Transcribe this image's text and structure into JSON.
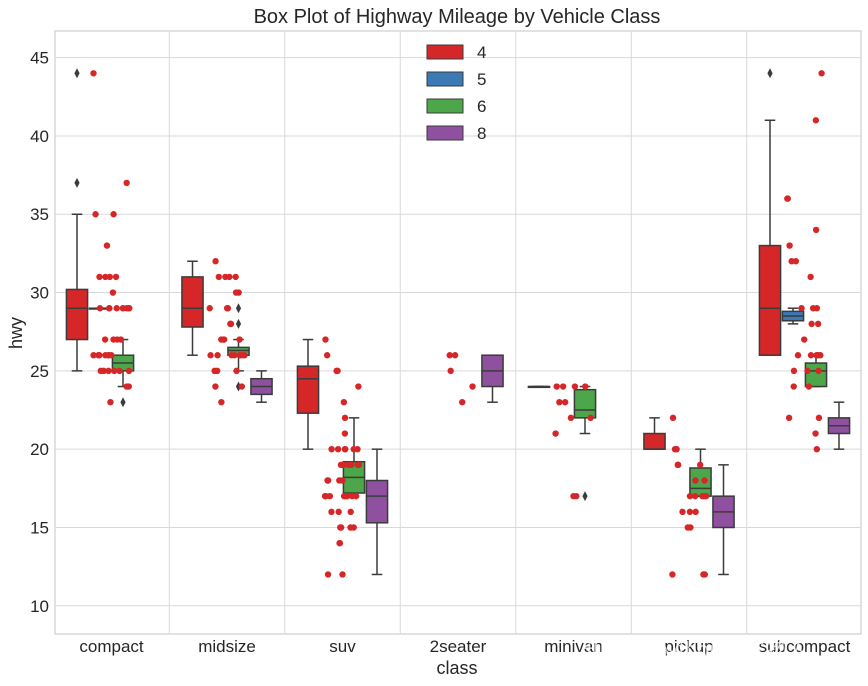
{
  "chart_data": {
    "type": "boxplot",
    "title": "Box Plot of Highway Mileage by Vehicle Class",
    "xlabel": "class",
    "ylabel": "hwy",
    "ylim": [
      8.2,
      46.7
    ],
    "yticks": [
      10,
      15,
      20,
      25,
      30,
      35,
      40,
      45
    ],
    "grid": true,
    "legend_position": "top-center",
    "categories": [
      "compact",
      "midsize",
      "suv",
      "2seater",
      "minivan",
      "pickup",
      "subcompact"
    ],
    "series": [
      {
        "name": "4",
        "color": "#d62728",
        "boxes": [
          {
            "category": "compact",
            "whislo": 25,
            "q1": 27,
            "med": 29,
            "q3": 30.2,
            "whishi": 35,
            "fliers": [
              37,
              44
            ]
          },
          {
            "category": "midsize",
            "whislo": 26,
            "q1": 27.8,
            "med": 29,
            "q3": 31,
            "whishi": 32,
            "fliers": []
          },
          {
            "category": "suv",
            "whislo": 20,
            "q1": 22.3,
            "med": 24.5,
            "q3": 25.3,
            "whishi": 27,
            "fliers": []
          },
          {
            "category": "minivan",
            "whislo": 24,
            "q1": 24,
            "med": 24,
            "q3": 24,
            "whishi": 24,
            "fliers": []
          },
          {
            "category": "pickup",
            "whislo": 20,
            "q1": 20,
            "med": 20,
            "q3": 21,
            "whishi": 22,
            "fliers": []
          },
          {
            "category": "subcompact",
            "whislo": 26,
            "q1": 26,
            "med": 29,
            "q3": 33,
            "whishi": 41,
            "fliers": [
              44
            ]
          }
        ]
      },
      {
        "name": "5",
        "color": "#3a7ab5",
        "boxes": [
          {
            "category": "compact",
            "whislo": 29,
            "q1": 29,
            "med": 29,
            "q3": 29,
            "whishi": 29,
            "fliers": []
          },
          {
            "category": "subcompact",
            "whislo": 28,
            "q1": 28.2,
            "med": 28.5,
            "q3": 28.8,
            "whishi": 29,
            "fliers": []
          }
        ]
      },
      {
        "name": "6",
        "color": "#4ea64a",
        "boxes": [
          {
            "category": "compact",
            "whislo": 24,
            "q1": 25,
            "med": 25.5,
            "q3": 26,
            "whishi": 27,
            "fliers": [
              23
            ]
          },
          {
            "category": "midsize",
            "whislo": 25,
            "q1": 26,
            "med": 26.3,
            "q3": 26.5,
            "whishi": 27,
            "fliers": [
              24,
              28,
              29
            ]
          },
          {
            "category": "suv",
            "whislo": 17,
            "q1": 17.2,
            "med": 18.2,
            "q3": 19.2,
            "whishi": 22,
            "fliers": []
          },
          {
            "category": "minivan",
            "whislo": 21,
            "q1": 22,
            "med": 22.5,
            "q3": 23.8,
            "whishi": 24,
            "fliers": [
              17
            ]
          },
          {
            "category": "pickup",
            "whislo": 17,
            "q1": 17,
            "med": 17.5,
            "q3": 18.8,
            "whishi": 20,
            "fliers": []
          },
          {
            "category": "subcompact",
            "whislo": 24,
            "q1": 24,
            "med": 25,
            "q3": 25.5,
            "whishi": 26,
            "fliers": []
          }
        ]
      },
      {
        "name": "8",
        "color": "#9050a0",
        "boxes": [
          {
            "category": "midsize",
            "whislo": 23,
            "q1": 23.5,
            "med": 24,
            "q3": 24.5,
            "whishi": 25,
            "fliers": []
          },
          {
            "category": "suv",
            "whislo": 12,
            "q1": 15.3,
            "med": 17,
            "q3": 18,
            "whishi": 20,
            "fliers": []
          },
          {
            "category": "2seater",
            "whislo": 23,
            "q1": 24,
            "med": 25,
            "q3": 26,
            "whishi": 26,
            "fliers": []
          },
          {
            "category": "pickup",
            "whislo": 12,
            "q1": 15,
            "med": 16,
            "q3": 17,
            "whishi": 19,
            "fliers": []
          },
          {
            "category": "subcompact",
            "whislo": 20,
            "q1": 21,
            "med": 21.5,
            "q3": 22,
            "whishi": 23,
            "fliers": []
          }
        ]
      }
    ],
    "strip_points": [
      {
        "category": "compact",
        "color": "#d62728",
        "values": [
          44,
          37,
          35,
          35,
          33,
          31,
          31,
          31,
          31,
          30,
          29,
          29,
          29,
          29,
          29,
          29,
          29,
          29,
          29,
          27,
          27,
          27,
          27,
          26,
          26,
          26,
          26,
          26,
          26,
          26,
          25,
          25,
          25,
          25,
          25,
          25,
          24,
          24,
          23
        ]
      },
      {
        "category": "midsize",
        "color": "#d62728",
        "values": [
          32,
          31,
          31,
          31,
          31,
          30,
          30,
          29,
          29,
          29,
          29,
          28,
          28,
          27,
          27,
          27,
          27,
          26,
          26,
          26,
          26,
          26,
          26,
          26,
          26,
          25,
          25,
          25,
          24,
          24,
          23
        ]
      },
      {
        "category": "suv",
        "color": "#d62728",
        "values": [
          27,
          26,
          25,
          25,
          24,
          23,
          22,
          21,
          20,
          20,
          20,
          20,
          20,
          20,
          19,
          19,
          19,
          19,
          19,
          19,
          19,
          18,
          18,
          18,
          18,
          17,
          17,
          17,
          17,
          17,
          17,
          17,
          17,
          16,
          16,
          16,
          15,
          15,
          15,
          15,
          14,
          14,
          12,
          12
        ]
      },
      {
        "category": "2seater",
        "color": "#d62728",
        "values": [
          26,
          26,
          25,
          24,
          23
        ]
      },
      {
        "category": "minivan",
        "color": "#d62728",
        "values": [
          24,
          24,
          24,
          24,
          23,
          23,
          22,
          22,
          21,
          17,
          17
        ]
      },
      {
        "category": "pickup",
        "color": "#d62728",
        "values": [
          22,
          20,
          20,
          19,
          19,
          19,
          18,
          18,
          17,
          17,
          17,
          17,
          17,
          16,
          16,
          16,
          15,
          15,
          12,
          12,
          12
        ]
      },
      {
        "category": "subcompact",
        "color": "#d62728",
        "values": [
          44,
          41,
          36,
          36,
          34,
          33,
          32,
          32,
          31,
          29,
          29,
          29,
          28,
          28,
          27,
          26,
          26,
          26,
          26,
          26,
          25,
          25,
          25,
          24,
          24,
          22,
          22,
          21,
          20
        ]
      }
    ]
  },
  "watermark": "知乎 @python的生物人"
}
